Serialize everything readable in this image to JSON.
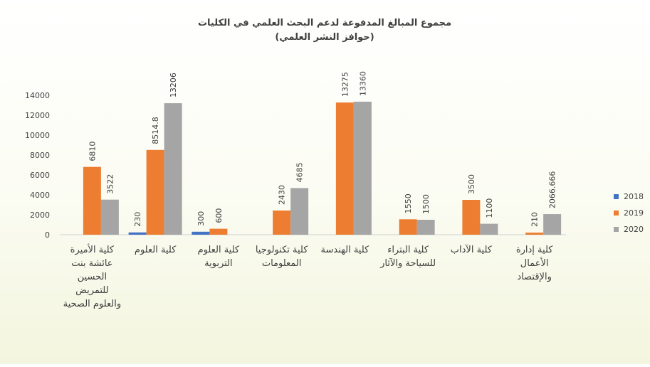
{
  "chart_data": {
    "type": "bar",
    "title": "مجموع المبالغ المدفوعة لدعم البحث العلمي في الكليات",
    "subtitle": "(حوافز النشر العلمي)",
    "categories": [
      [
        "كلية الأميرة",
        "عائشة بنت",
        "الحسين",
        "للتمريض",
        "والعلوم الصحية"
      ],
      [
        "كلية العلوم"
      ],
      [
        "كلية العلوم",
        "التربوية"
      ],
      [
        "كلية تكنولوجيا",
        "المعلومات"
      ],
      [
        "كلية الهندسة"
      ],
      [
        "كلية البتراء",
        "للسياحة والآثار"
      ],
      [
        "كلية الآداب"
      ],
      [
        "كلية إدارة",
        "الأعمال",
        "والإقتصاد"
      ]
    ],
    "series": [
      {
        "name": "2018",
        "color": "#4472C4",
        "values": [
          null,
          230,
          300,
          null,
          null,
          null,
          null,
          null
        ],
        "labels": [
          "",
          "230",
          "300",
          "",
          "",
          "",
          "",
          ""
        ]
      },
      {
        "name": "2019",
        "color": "#ED7D31",
        "values": [
          6810,
          8514.8,
          600,
          2430,
          13275,
          1550,
          3500,
          210
        ],
        "labels": [
          "6810",
          "8514.8",
          "600",
          "2430",
          "13275",
          "1550",
          "3500",
          "210"
        ]
      },
      {
        "name": "2020",
        "color": "#A5A5A5",
        "values": [
          3522,
          13206,
          null,
          4685,
          13360,
          1500,
          1100,
          2066.666
        ],
        "labels": [
          "3522",
          "13206",
          "",
          "4685",
          "13360",
          "1500",
          "1100",
          "2066.666"
        ]
      }
    ],
    "y_ticks": [
      "0",
      "2000",
      "4000",
      "6000",
      "8000",
      "10000",
      "12000",
      "14000"
    ],
    "ylim": [
      0,
      14000
    ],
    "grid": false,
    "legend_position": "right"
  }
}
